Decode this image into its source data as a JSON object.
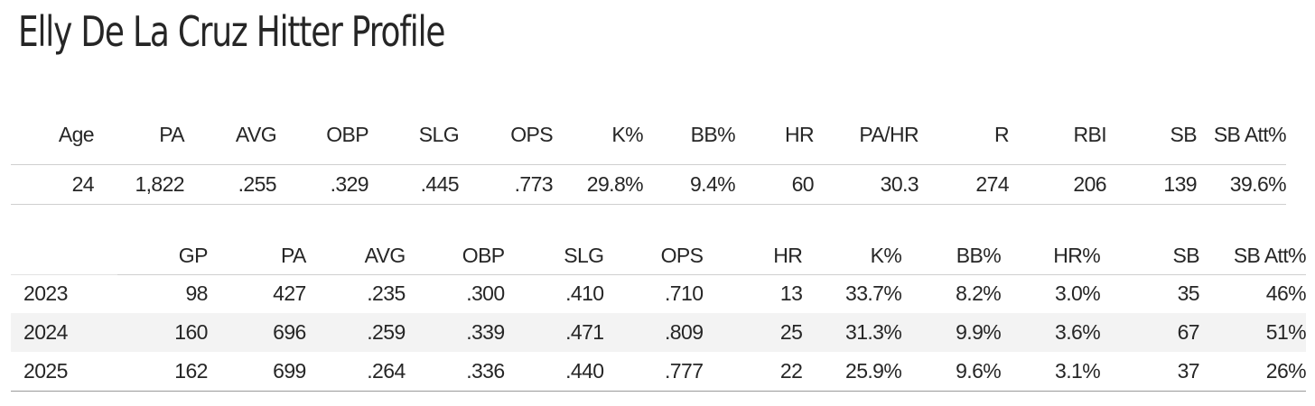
{
  "title": "Elly De La Cruz Hitter Profile",
  "summary": {
    "headers": [
      "Age",
      "PA",
      "AVG",
      "OBP",
      "SLG",
      "OPS",
      "K%",
      "BB%",
      "HR",
      "PA/HR",
      "R",
      "RBI",
      "SB",
      "SB Att%"
    ],
    "values": [
      "24",
      "1,822",
      ".255",
      ".329",
      ".445",
      ".773",
      "29.8%",
      "9.4%",
      "60",
      "30.3",
      "274",
      "206",
      "139",
      "39.6%"
    ]
  },
  "seasons": {
    "headers": [
      "",
      "GP",
      "PA",
      "AVG",
      "OBP",
      "SLG",
      "OPS",
      "HR",
      "K%",
      "BB%",
      "HR%",
      "SB",
      "SB Att%"
    ],
    "rows": [
      [
        "2023",
        "98",
        "427",
        ".235",
        ".300",
        ".410",
        ".710",
        "13",
        "33.7%",
        "8.2%",
        "3.0%",
        "35",
        "46%"
      ],
      [
        "2024",
        "160",
        "696",
        ".259",
        ".339",
        ".471",
        ".809",
        "25",
        "31.3%",
        "9.9%",
        "3.6%",
        "67",
        "51%"
      ],
      [
        "2025",
        "162",
        "699",
        ".264",
        ".336",
        ".440",
        ".777",
        "22",
        "25.9%",
        "9.6%",
        "3.1%",
        "37",
        "26%"
      ]
    ]
  }
}
